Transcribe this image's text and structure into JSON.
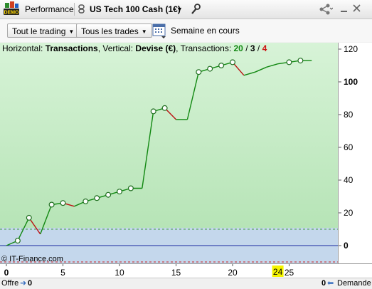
{
  "titlebar": {
    "demo_badge": "DEMO",
    "title": "Performance",
    "instrument": "US Tech 100 Cash (1€)"
  },
  "toolbar": {
    "trading_filter": "Tout le trading",
    "trades_filter": "Tous les trades",
    "period_label": "Semaine en cours"
  },
  "legend": {
    "horizontal_prefix": "Horizontal: ",
    "horizontal_value": "Transactions",
    "vertical_prefix": ", Vertical: ",
    "vertical_value": "Devise (€)",
    "transactions_prefix": ", Transactions: ",
    "total": "20",
    "slash1": " / ",
    "winners": "3",
    "slash2": " / ",
    "losers": "4"
  },
  "watermark": "© IT-Finance.com",
  "status": {
    "offer_label": "Offre",
    "offer_value": "0",
    "demand_value": "0",
    "demand_label": "Demande"
  },
  "colors": {
    "plot_top": "#d7f3d7",
    "plot_bottom": "#b4e3b4",
    "below_zero": "#c4d7ec",
    "rising": "#118811",
    "falling": "#bb1111",
    "highlight": "#f5f500"
  },
  "chart_data": {
    "type": "line",
    "xlabel": "Transactions",
    "ylabel": "Devise (€)",
    "xlim": [
      -0.5,
      29
    ],
    "ylim": [
      -10,
      122
    ],
    "y_ticks": [
      0,
      20,
      40,
      60,
      80,
      100,
      120
    ],
    "x_ticks": [
      "0",
      "5",
      "10",
      "15",
      "20",
      "25"
    ],
    "highlighted_x_label": "24",
    "reference_lines": [
      10,
      0,
      -10
    ],
    "x": [
      0,
      1,
      2,
      3,
      4,
      5,
      6,
      7,
      8,
      9,
      10,
      11,
      12,
      13,
      14,
      15,
      16,
      17,
      18,
      19,
      20,
      21,
      22,
      23,
      24,
      25,
      26,
      27
    ],
    "y": [
      0,
      3,
      17,
      7,
      25,
      26,
      24,
      27,
      29,
      31,
      33,
      35,
      35,
      82,
      84,
      77,
      77,
      106,
      108,
      110,
      112,
      104,
      106,
      109,
      111,
      112,
      113,
      113
    ],
    "circle_markers": [
      1,
      2,
      4,
      5,
      7,
      8,
      9,
      10,
      11,
      13,
      14,
      17,
      18,
      19,
      20,
      25,
      26
    ],
    "grid": false
  }
}
